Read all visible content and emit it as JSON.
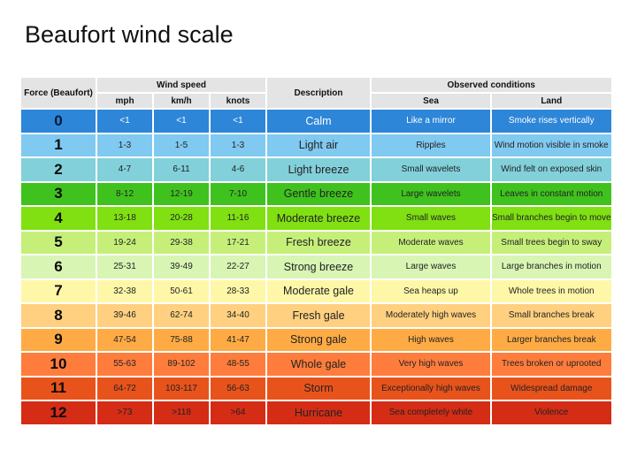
{
  "title": "Beaufort wind scale",
  "table": {
    "header": {
      "force": "Force (Beaufort)",
      "wind_speed": "Wind speed",
      "mph": "mph",
      "kmh": "km/h",
      "knots": "knots",
      "description": "Description",
      "observed": "Observed conditions",
      "sea": "Sea",
      "land": "Land"
    },
    "rows": [
      [
        "0",
        "<1",
        "<1",
        "<1",
        "Calm",
        "Like a mirror",
        "Smoke rises vertically"
      ],
      [
        "1",
        "1-3",
        "1-5",
        "1-3",
        "Light air",
        "Ripples",
        "Wind motion visible in smoke"
      ],
      [
        "2",
        "4-7",
        "6-11",
        "4-6",
        "Light breeze",
        "Small wavelets",
        "Wind felt on exposed skin"
      ],
      [
        "3",
        "8-12",
        "12-19",
        "7-10",
        "Gentle breeze",
        "Large wavelets",
        "Leaves in constant motion"
      ],
      [
        "4",
        "13-18",
        "20-28",
        "11-16",
        "Moderate breeze",
        "Small waves",
        "Small branches begin to move"
      ],
      [
        "5",
        "19-24",
        "29-38",
        "17-21",
        "Fresh breeze",
        "Moderate waves",
        "Small trees begin to sway"
      ],
      [
        "6",
        "25-31",
        "39-49",
        "22-27",
        "Strong breeze",
        "Large waves",
        "Large branches in motion"
      ],
      [
        "7",
        "32-38",
        "50-61",
        "28-33",
        "Moderate gale",
        "Sea heaps up",
        "Whole trees in motion"
      ],
      [
        "8",
        "39-46",
        "62-74",
        "34-40",
        "Fresh gale",
        "Moderately high waves",
        "Small branches break"
      ],
      [
        "9",
        "47-54",
        "75-88",
        "41-47",
        "Strong gale",
        "High waves",
        "Larger branches break"
      ],
      [
        "10",
        "55-63",
        "89-102",
        "48-55",
        "Whole gale",
        "Very high waves",
        "Trees broken or uprooted"
      ],
      [
        "11",
        "64-72",
        "103-117",
        "56-63",
        "Storm",
        "Exceptionally high waves",
        "Widespread damage"
      ],
      [
        "12",
        ">73",
        ">118",
        ">64",
        "Hurricane",
        "Sea completely white",
        "Violence"
      ]
    ]
  }
}
